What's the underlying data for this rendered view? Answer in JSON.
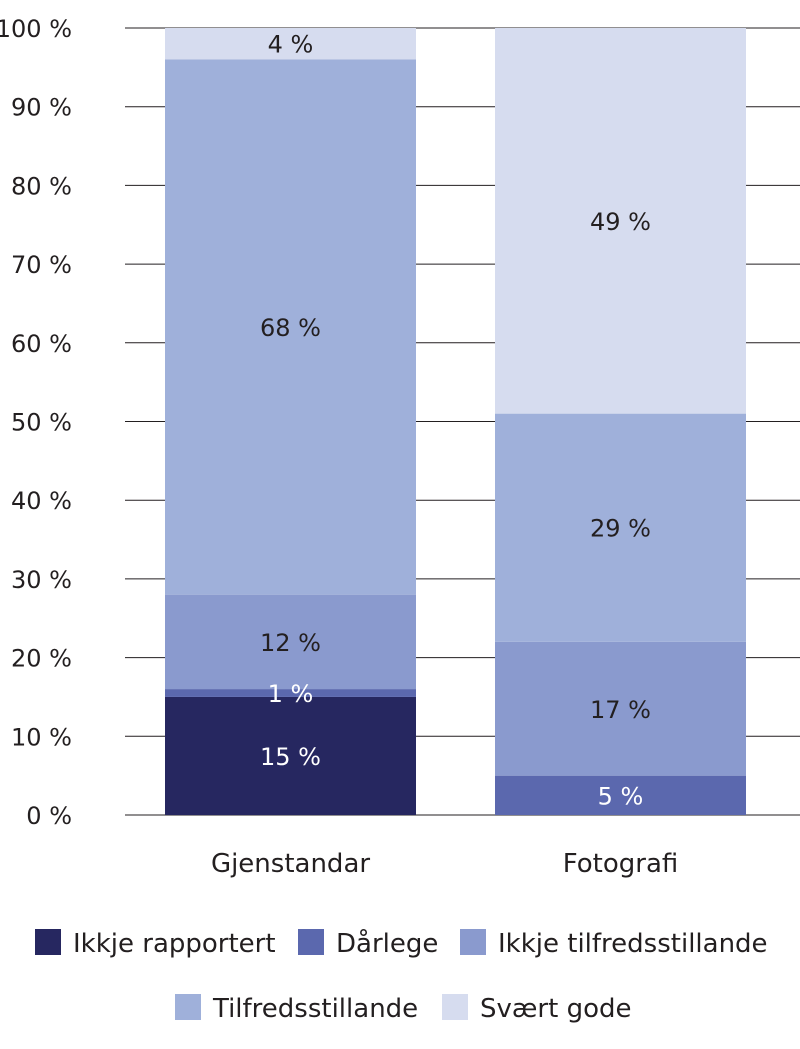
{
  "chart_data": {
    "type": "bar",
    "stacked": true,
    "categories": [
      "Gjenstandar",
      "Fotografi"
    ],
    "series": [
      {
        "name": "Ikkje rapportert",
        "values": [
          15,
          0
        ],
        "labels": [
          "15 %",
          ""
        ],
        "color": "#262760",
        "label_color": "#ffffff"
      },
      {
        "name": "Dårlege",
        "values": [
          1,
          5
        ],
        "labels": [
          "1 %",
          "5 %"
        ],
        "color": "#5b68ae",
        "label_color": "#ffffff"
      },
      {
        "name": "Ikkje tilfredsstillande",
        "values": [
          12,
          17
        ],
        "labels": [
          "12 %",
          "17 %"
        ],
        "color": "#8a9ace",
        "label_color": "#231f20"
      },
      {
        "name": "Tilfredsstillande",
        "values": [
          68,
          29
        ],
        "labels": [
          "68 %",
          "29 %"
        ],
        "color": "#9fb0da",
        "label_color": "#231f20"
      },
      {
        "name": "Svært gode",
        "values": [
          4,
          49
        ],
        "labels": [
          "4 %",
          "49 %"
        ],
        "color": "#d6dcef",
        "label_color": "#231f20"
      }
    ],
    "ylim": [
      0,
      100
    ],
    "yticks": [
      0,
      10,
      20,
      30,
      40,
      50,
      60,
      70,
      80,
      90,
      100
    ],
    "ytick_labels": [
      "0 %",
      "10 %",
      "20 %",
      "30 %",
      "40 %",
      "50 %",
      "60 %",
      "70 %",
      "80 %",
      "90 %",
      "100 %"
    ],
    "grid": true,
    "legend_position": "bottom",
    "title": "",
    "xlabel": "",
    "ylabel": ""
  }
}
